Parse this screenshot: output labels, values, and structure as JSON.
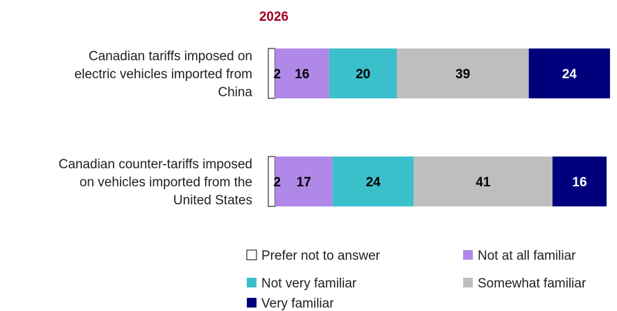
{
  "chart_data": {
    "type": "bar",
    "orientation": "horizontal",
    "stacked": true,
    "title": "2026",
    "categories": [
      [
        "Canadian tariffs imposed on",
        "electric vehicles imported from",
        "China"
      ],
      [
        "Canadian counter-tariffs imposed",
        "on vehicles imported from the",
        "United States"
      ]
    ],
    "series": [
      {
        "name": "Prefer not to answer",
        "values": [
          2,
          2
        ]
      },
      {
        "name": "Not at all familiar",
        "values": [
          16,
          17
        ]
      },
      {
        "name": "Not very familiar",
        "values": [
          20,
          24
        ]
      },
      {
        "name": "Somewhat familiar",
        "values": [
          39,
          41
        ]
      },
      {
        "name": "Very familiar",
        "values": [
          24,
          16
        ]
      }
    ],
    "xlim": [
      0,
      100
    ],
    "legend_position": "bottom",
    "grid": false
  },
  "colors": {
    "title": "#A50021",
    "series": [
      "#FFFFFF",
      "#B088E8",
      "#3BBFCB",
      "#BEBEBE",
      "#00007C"
    ],
    "series_outline": [
      "#000000",
      null,
      null,
      null,
      null
    ],
    "value_text": [
      "#000000",
      "#000000",
      "#000000",
      "#000000",
      "#FFFFFF"
    ]
  }
}
